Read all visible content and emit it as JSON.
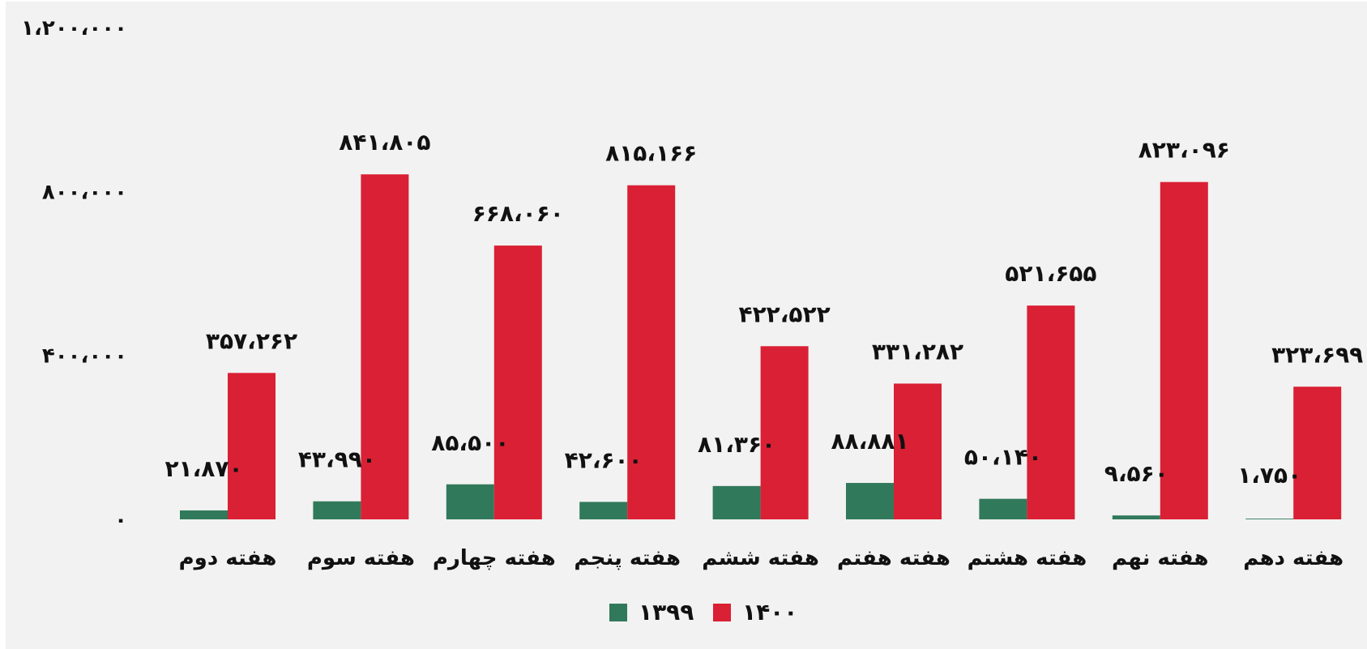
{
  "chart_data": {
    "type": "bar",
    "categories": [
      "هفته دوم",
      "هفته سوم",
      "هفته چهارم",
      "هفته پنجم",
      "هفته ششم",
      "هفته هفتم",
      "هفته هشتم",
      "هفته نهم",
      "هفته دهم"
    ],
    "series": [
      {
        "name": "۱۳۹۹",
        "color": "#31795b",
        "values": [
          21870,
          43990,
          85500,
          42600,
          81360,
          88881,
          50140,
          9560,
          1750
        ],
        "labels": [
          "۲۱،۸۷۰",
          "۴۳،۹۹۰",
          "۸۵،۵۰۰",
          "۴۲،۶۰۰",
          "۸۱،۳۶۰",
          "۸۸،۸۸۱",
          "۵۰،۱۴۰",
          "۹،۵۶۰",
          "۱،۷۵۰"
        ]
      },
      {
        "name": "۱۴۰۰",
        "color": "#da2034",
        "values": [
          357262,
          841805,
          668060,
          815166,
          422522,
          331282,
          521655,
          823096,
          323699
        ],
        "labels": [
          "۳۵۷،۲۶۲",
          "۸۴۱،۸۰۵",
          "۶۶۸،۰۶۰",
          "۸۱۵،۱۶۶",
          "۴۲۲،۵۲۲",
          "۳۳۱،۲۸۲",
          "۵۲۱،۶۵۵",
          "۸۲۳،۰۹۶",
          "۳۲۳،۶۹۹"
        ]
      }
    ],
    "ylim": [
      0,
      1200000
    ],
    "yticks": [
      {
        "value": 0,
        "label": "۰"
      },
      {
        "value": 400000,
        "label": "۴۰۰،۰۰۰"
      },
      {
        "value": 800000,
        "label": "۸۰۰،۰۰۰"
      },
      {
        "value": 1200000,
        "label": "۱،۲۰۰،۰۰۰"
      }
    ],
    "grid": false,
    "legend_position": "bottom-center"
  }
}
